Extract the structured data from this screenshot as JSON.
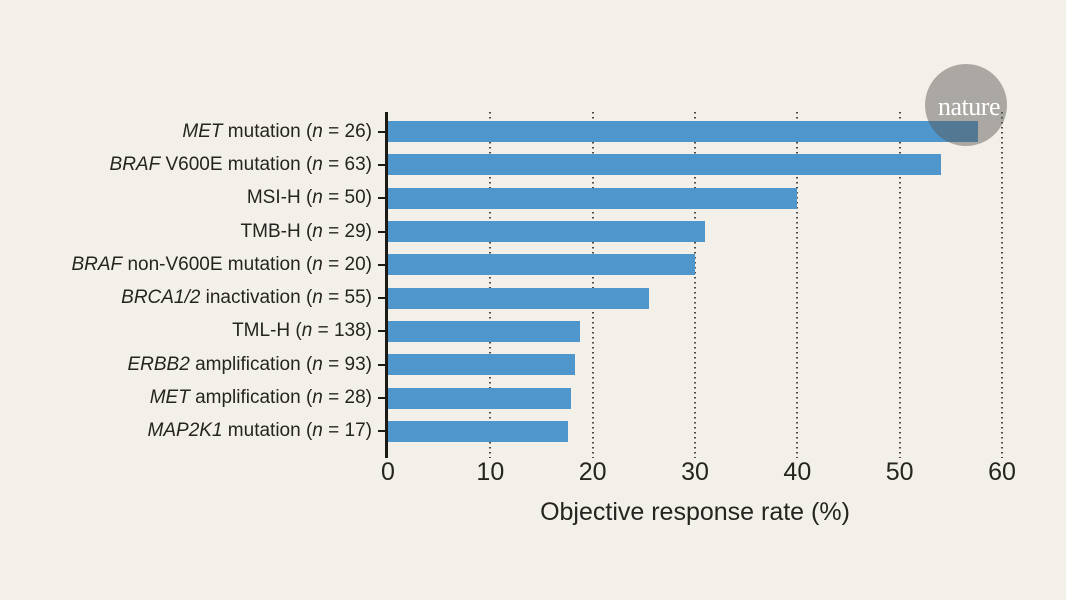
{
  "page": {
    "background": "#f3f0e9"
  },
  "logo": {
    "text": "nature",
    "circle_color": "rgba(90, 87, 84, 0.47)",
    "text_color": "#ffffff"
  },
  "chart_data": {
    "type": "bar",
    "orientation": "horizontal",
    "title": "",
    "xlabel": "Objective response rate (%)",
    "ylabel": "",
    "xlim": [
      0,
      60
    ],
    "x_ticks": [
      0,
      10,
      20,
      30,
      40,
      50,
      60
    ],
    "grid": "dotted vertical gridlines at each nonzero x tick",
    "legend": "none",
    "bar_color": "#4e96cc",
    "axis_color": "#1c1a16",
    "gridline_dot_color": "rgba(58, 56, 50, 0.9)",
    "text_color": "#262420",
    "categories": [
      "MET mutation (n = 26)",
      "BRAF V600E mutation (n = 63)",
      "MSI-H (n = 50)",
      "TMB-H (n = 29)",
      "BRAF non-V600E mutation (n = 20)",
      "BRCA1/2 inactivation (n = 55)",
      "TML-H (n = 138)",
      "ERBB2 amplification (n = 93)",
      "MET amplification (n = 28)",
      "MAP2K1 mutation (n = 17)"
    ],
    "values": [
      57.7,
      54.0,
      40.0,
      31.0,
      30.0,
      25.5,
      18.8,
      18.3,
      17.9,
      17.6
    ],
    "rows": [
      {
        "value": 57.7,
        "label_parts": [
          {
            "t": "MET",
            "i": true
          },
          {
            "t": " mutation (",
            "i": false
          },
          {
            "t": "n",
            "i": true
          },
          {
            "t": " = 26)",
            "i": false
          }
        ]
      },
      {
        "value": 54.0,
        "label_parts": [
          {
            "t": "BRAF",
            "i": true
          },
          {
            "t": " V600E mutation (",
            "i": false
          },
          {
            "t": "n",
            "i": true
          },
          {
            "t": " = 63)",
            "i": false
          }
        ]
      },
      {
        "value": 40.0,
        "label_parts": [
          {
            "t": "MSI-H (",
            "i": false
          },
          {
            "t": "n",
            "i": true
          },
          {
            "t": " = 50)",
            "i": false
          }
        ]
      },
      {
        "value": 31.0,
        "label_parts": [
          {
            "t": "TMB-H (",
            "i": false
          },
          {
            "t": "n",
            "i": true
          },
          {
            "t": " = 29)",
            "i": false
          }
        ]
      },
      {
        "value": 30.0,
        "label_parts": [
          {
            "t": "BRAF",
            "i": true
          },
          {
            "t": " non-V600E mutation (",
            "i": false
          },
          {
            "t": "n",
            "i": true
          },
          {
            "t": " = 20)",
            "i": false
          }
        ]
      },
      {
        "value": 25.5,
        "label_parts": [
          {
            "t": "BRCA1/2",
            "i": true
          },
          {
            "t": " inactivation (",
            "i": false
          },
          {
            "t": "n",
            "i": true
          },
          {
            "t": " = 55)",
            "i": false
          }
        ]
      },
      {
        "value": 18.8,
        "label_parts": [
          {
            "t": "TML-H (",
            "i": false
          },
          {
            "t": "n",
            "i": true
          },
          {
            "t": " = 138)",
            "i": false
          }
        ]
      },
      {
        "value": 18.3,
        "label_parts": [
          {
            "t": "ERBB2",
            "i": true
          },
          {
            "t": " amplification (",
            "i": false
          },
          {
            "t": "n",
            "i": true
          },
          {
            "t": " = 93)",
            "i": false
          }
        ]
      },
      {
        "value": 17.9,
        "label_parts": [
          {
            "t": "MET",
            "i": true
          },
          {
            "t": " amplification (",
            "i": false
          },
          {
            "t": "n",
            "i": true
          },
          {
            "t": " = 28)",
            "i": false
          }
        ]
      },
      {
        "value": 17.6,
        "label_parts": [
          {
            "t": "MAP2K1",
            "i": true
          },
          {
            "t": " mutation (",
            "i": false
          },
          {
            "t": "n",
            "i": true
          },
          {
            "t": " = 17)",
            "i": false
          }
        ]
      }
    ]
  }
}
